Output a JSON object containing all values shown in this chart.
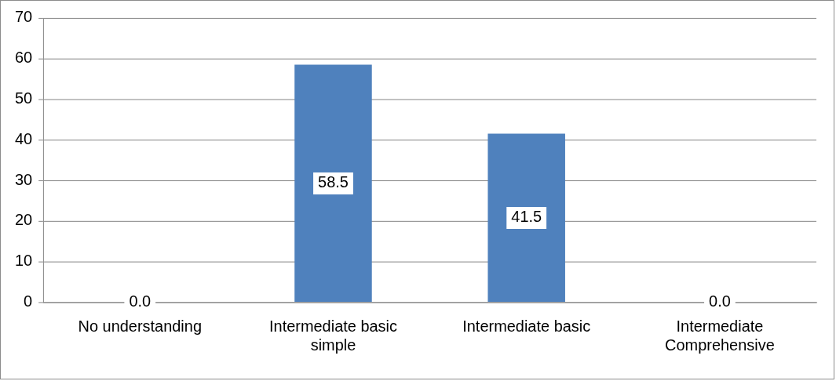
{
  "chart_data": {
    "type": "bar",
    "categories": [
      "No understanding",
      "Intermediate basic simple",
      "Intermediate basic",
      "Intermediate Comprehensive"
    ],
    "values": [
      0,
      58.5,
      41.5,
      0
    ],
    "value_labels": [
      "0.0",
      "58.5",
      "41.5",
      "0.0"
    ],
    "color": "#4f81bd",
    "ylim": [
      0,
      70
    ],
    "yticks": [
      0,
      10,
      20,
      30,
      40,
      50,
      60,
      70
    ],
    "grid": "y"
  }
}
